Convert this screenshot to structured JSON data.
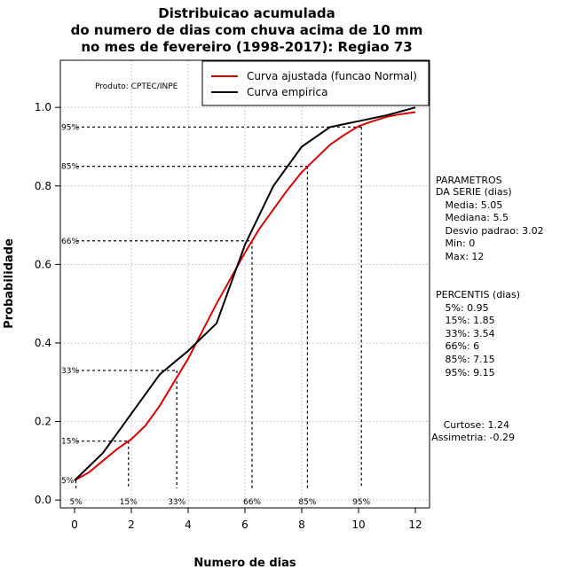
{
  "chart_data": {
    "type": "line",
    "title": [
      "Distribuicao acumulada",
      "do numero de dias com chuva acima de 10 mm",
      "no mes de fevereiro (1998-2017): Regiao 73"
    ],
    "xlabel": "Numero de dias",
    "ylabel": "Probabilidade",
    "xlim": [
      -0.5,
      12.5
    ],
    "ylim": [
      -0.02,
      1.12
    ],
    "x_ticks": [
      0,
      2,
      4,
      6,
      8,
      10,
      12
    ],
    "x_tick_labels": [
      "0",
      "2",
      "4",
      "6",
      "8",
      "10",
      "12"
    ],
    "y_ticks": [
      0.0,
      0.2,
      0.4,
      0.6,
      0.8,
      1.0
    ],
    "y_tick_labels": [
      "0.0",
      "0.2",
      "0.4",
      "0.6",
      "0.8",
      "1.0"
    ],
    "grid": true,
    "legend_placement": "top-right",
    "product_note": "Produto: CPTEC/INPE",
    "series": [
      {
        "name": "Curva ajustada (funcao Normal)",
        "color": "#dd0000",
        "x": [
          0,
          0.5,
          1,
          1.5,
          2,
          2.5,
          3,
          3.5,
          4,
          4.5,
          5,
          5.5,
          6,
          6.5,
          7,
          7.5,
          8,
          8.5,
          9,
          9.5,
          10,
          10.5,
          11,
          11.5,
          12
        ],
        "y": [
          0.05,
          0.07,
          0.1,
          0.13,
          0.155,
          0.19,
          0.24,
          0.3,
          0.36,
          0.43,
          0.5,
          0.565,
          0.63,
          0.69,
          0.74,
          0.79,
          0.835,
          0.87,
          0.905,
          0.93,
          0.952,
          0.965,
          0.976,
          0.983,
          0.988
        ]
      },
      {
        "name": "Curva empirica",
        "color": "#000000",
        "x": [
          0,
          1,
          2,
          3,
          4,
          5,
          6,
          7,
          8,
          9,
          10,
          11,
          12
        ],
        "y": [
          0.05,
          0.12,
          0.22,
          0.32,
          0.38,
          0.45,
          0.65,
          0.8,
          0.9,
          0.95,
          0.965,
          0.98,
          1.0
        ]
      }
    ],
    "percentile_markers": [
      {
        "label": "5%",
        "x": 0.05,
        "y": 0.05
      },
      {
        "label": "15%",
        "x": 1.9,
        "y": 0.15
      },
      {
        "label": "33%",
        "x": 3.6,
        "y": 0.33
      },
      {
        "label": "66%",
        "x": 6.25,
        "y": 0.66
      },
      {
        "label": "85%",
        "x": 8.2,
        "y": 0.85
      },
      {
        "label": "95%",
        "x": 10.1,
        "y": 0.95
      }
    ]
  },
  "side_panel": {
    "parametros": [
      "PARAMETROS",
      "DA SERIE (dias)",
      "   Media: 5.05",
      "   Mediana: 5.5",
      "   Desvio padrao: 3.02",
      "   Min: 0",
      "   Max: 12"
    ],
    "percentis": [
      "PERCENTIS (dias)",
      "   5%: 0.95",
      "   15%: 1.85",
      "   33%: 3.54",
      "   66%: 6",
      "   85%: 7.15",
      "   95%: 9.15"
    ],
    "curtose": "Curtose: 1.24",
    "assimetria": "Assimetria: -0.29"
  }
}
